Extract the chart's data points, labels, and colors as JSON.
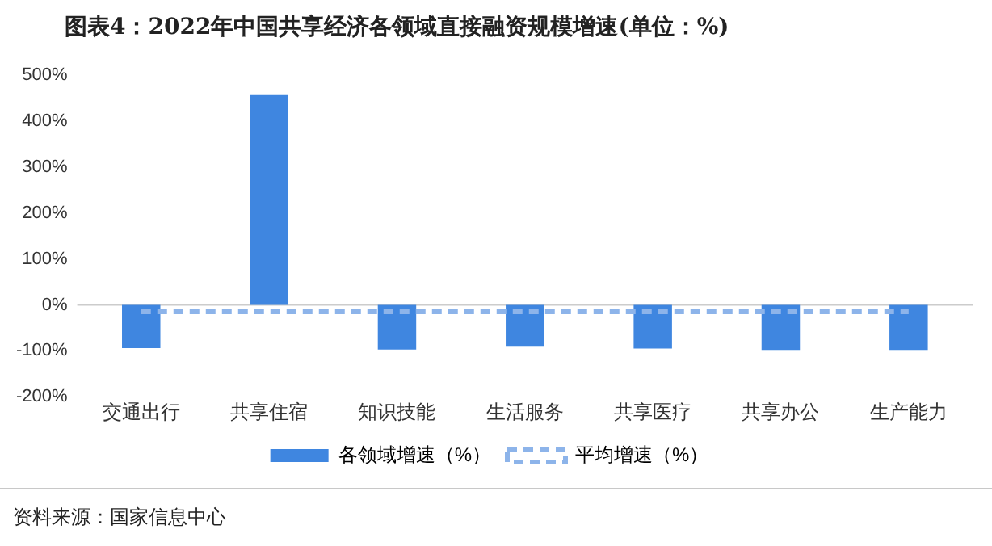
{
  "chart_data": {
    "type": "bar",
    "title": "图表4：2022年中国共享经济各领域直接融资规模增速(单位：%)",
    "categories": [
      "交通出行",
      "共享住宿",
      "知识技能",
      "生活服务",
      "共享医疗",
      "共享办公",
      "生产能力"
    ],
    "series": [
      {
        "name": "各领域增速（%）",
        "color": "#3f86e0",
        "values": [
          -94,
          457,
          -97,
          -91,
          -95,
          -98,
          -98
        ]
      },
      {
        "name": "平均增速（%）",
        "type": "line",
        "line_style": "dashed",
        "marker": "none",
        "color": "#8db4ea",
        "values": [
          -15,
          -15,
          -15,
          -15,
          -15,
          -15,
          -15
        ]
      }
    ],
    "ylim": [
      -200,
      500
    ],
    "yticks": [
      {
        "value": -200,
        "label": "-200%"
      },
      {
        "value": -100,
        "label": "-100%"
      },
      {
        "value": 0,
        "label": "0%"
      },
      {
        "value": 100,
        "label": "100%"
      },
      {
        "value": 200,
        "label": "200%"
      },
      {
        "value": 300,
        "label": "300%"
      },
      {
        "value": 400,
        "label": "400%"
      },
      {
        "value": 500,
        "label": "500%"
      }
    ],
    "grid": false,
    "legend": "bottom",
    "ref_lines": [
      {
        "axis": "y",
        "value": 0,
        "color": "#cccccc"
      }
    ],
    "annotations": [
      "资料来源：国家信息中心"
    ]
  }
}
